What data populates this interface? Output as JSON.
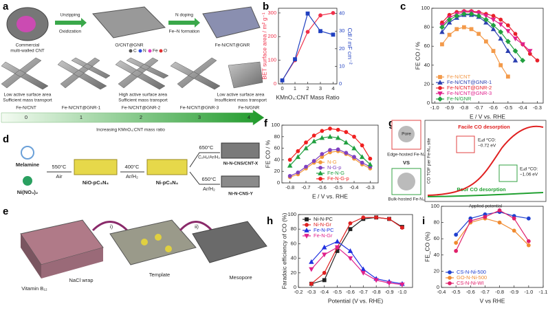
{
  "panel_labels": [
    "a",
    "b",
    "c",
    "d",
    "e",
    "f",
    "g",
    "h",
    "i"
  ],
  "panel_a": {
    "step1": [
      "Unzipping",
      "Oxidization"
    ],
    "step2": [
      "N doping",
      "Fe–N formation"
    ],
    "cnt": [
      "Commercial",
      "multi-walled CNT"
    ],
    "middle": "O/CNT@GNR",
    "right": "Fe-N/CNT@GNR",
    "atoms": [
      "C",
      "N",
      "Fe",
      "O"
    ],
    "captions": [
      [
        "Low active surface area",
        "Sufficient mass transport"
      ],
      [
        "High active surface area",
        "Sufficient mass transport"
      ],
      [
        "Low active surface area",
        "Insufficient mass transport"
      ]
    ],
    "samples": [
      "Fe-N/CNT",
      "Fe-N/CNT@GNR-1",
      "Fe-N/CNT@GNR-2",
      "Fe-N/CNT@GNR-3",
      "Fe-N/GNR"
    ],
    "ratios": [
      0,
      1,
      2,
      3,
      4
    ],
    "arrow": "Increasing KMnO₄:CNT mass ratio"
  },
  "panel_d": {
    "melamine": "Melamine",
    "nickel": "Ni(NO₃)₂",
    "t1": "550°C",
    "g1": "Air",
    "p1": "NiO-pC₃N₄",
    "t2": "400°C",
    "g2": "Ar/H₂",
    "p2": "Ni-pC₃N₄",
    "t3": "650°C",
    "g3": "C₂H₂/Ar/H₂",
    "p3": "Ni-N-CNS/CNT-X",
    "t4": "650°C",
    "g4": "Ar/H₂",
    "p4": "Ni-N-CNS-Y"
  },
  "panel_e": {
    "vitamin": "Vitamin B₁₂",
    "wrap": "NaCl wrap",
    "template": "Template",
    "mesopore": "Mesopore",
    "s1": "i)",
    "s2": "ii)"
  },
  "panel_g": {
    "pore": "Pore",
    "vs": "VS",
    "edge": "Edge-hosted Fe-N₄",
    "bulk": "Bulk-hosted Fe-N₄",
    "facile": "Facile CO desorption",
    "poor": "Poor CO desorption",
    "e1": [
      "Eₐd *CO:",
      "−0.72 eV"
    ],
    "e2": [
      "Eₐd *CO:",
      "−1.06 eV"
    ],
    "ylabel": "CO TOF per Fe-N₄ site",
    "xlabel": "Applied potential"
  },
  "chart_data": [
    {
      "type": "line",
      "x_label": "KMnO₄:CNT Mass Ratio",
      "y_label": "BET surface area / m² g⁻¹",
      "y2_label": "Cdl / mF cm⁻²",
      "x": [
        0,
        1,
        2,
        3,
        4
      ],
      "series": [
        {
          "name": "BET surface area",
          "color": "#f0304a",
          "marker": "circle",
          "values": [
            15,
            100,
            220,
            290,
            300
          ]
        },
        {
          "name": "Cdl",
          "color": "#2040c0",
          "marker": "square",
          "axis": "y2",
          "values": [
            2,
            14,
            40,
            30,
            28
          ]
        }
      ],
      "xlim": [
        -0.3,
        4.3
      ],
      "xticks": [
        0,
        1,
        2,
        3,
        4
      ],
      "ylim": [
        0,
        320
      ],
      "yticks": [
        0,
        100,
        200,
        300
      ],
      "y2lim": [
        0,
        43
      ],
      "y2ticks": [
        0,
        10,
        20,
        30,
        40
      ]
    },
    {
      "type": "line",
      "x_label": "E / V vs. RHE",
      "y_label": "FE CO / %",
      "legend": "lower left",
      "x": [
        -0.95,
        -0.9,
        -0.85,
        -0.8,
        -0.75,
        -0.7,
        -0.65,
        -0.6,
        -0.55,
        -0.5,
        -0.45,
        -0.4,
        -0.35,
        -0.3
      ],
      "series": [
        {
          "name": "Fe-N/CNT",
          "color": "#f39a4a",
          "marker": "square",
          "values": [
            62,
            72,
            78,
            80,
            78,
            73,
            65,
            55,
            40,
            28,
            null,
            null,
            null,
            null
          ]
        },
        {
          "name": "Fe-N/CNT@GNR-1",
          "color": "#2b3fb0",
          "marker": "triangle",
          "values": [
            75,
            85,
            90,
            93,
            93,
            91,
            85,
            78,
            68,
            55,
            45,
            null,
            null,
            null
          ]
        },
        {
          "name": "Fe-N/CNT@GNR-2",
          "color": "#e8202a",
          "marker": "circle",
          "values": [
            85,
            93,
            96,
            97,
            97,
            96,
            94,
            92,
            88,
            82,
            73,
            62,
            52,
            45
          ]
        },
        {
          "name": "Fe-N/CNT@GNR-3",
          "color": "#e0208c",
          "marker": "triangle-down",
          "values": [
            82,
            90,
            94,
            96,
            96,
            95,
            92,
            88,
            83,
            76,
            68,
            62,
            55,
            null
          ]
        },
        {
          "name": "Fe-N/GNR",
          "color": "#22a040",
          "marker": "diamond",
          "values": [
            80,
            88,
            92,
            94,
            94,
            92,
            88,
            82,
            75,
            65,
            55,
            45,
            null,
            null
          ]
        }
      ],
      "xlim": [
        -1.02,
        -0.26
      ],
      "xticks": [
        {
          "value": -1,
          "label": "-1.0"
        },
        -0.9,
        -0.8,
        -0.7,
        -0.6,
        -0.5,
        -0.4,
        -0.3
      ],
      "ylim": [
        0,
        100
      ],
      "yticks": [
        0,
        20,
        40,
        60,
        80,
        100
      ]
    },
    {
      "type": "line",
      "x_label": "E / V vs. RHE",
      "y_label": "FE CO / %",
      "legend": "lower center",
      "x": [
        -0.8,
        -0.75,
        -0.7,
        -0.65,
        -0.6,
        -0.55,
        -0.5,
        -0.45,
        -0.4,
        -0.35,
        -0.3
      ],
      "series": [
        {
          "name": "N-G",
          "color": "#f39a3a",
          "marker": "circle",
          "values": [
            10,
            15,
            25,
            35,
            45,
            53,
            55,
            50,
            42,
            32,
            25
          ]
        },
        {
          "name": "N-G-p",
          "color": "#8040c0",
          "marker": "circle",
          "values": [
            12,
            18,
            28,
            38,
            50,
            57,
            58,
            52,
            45,
            35,
            28
          ]
        },
        {
          "name": "Fe-N-G",
          "color": "#20a040",
          "marker": "triangle",
          "values": [
            30,
            45,
            60,
            72,
            78,
            80,
            78,
            70,
            60,
            45,
            32
          ]
        },
        {
          "name": "Fe-N-G-p",
          "color": "#f02020",
          "marker": "circle",
          "values": [
            40,
            55,
            70,
            82,
            90,
            94,
            92,
            88,
            80,
            65,
            42
          ]
        }
      ],
      "xlim": [
        -0.85,
        -0.25
      ],
      "xticks": [
        -0.8,
        -0.7,
        -0.6,
        -0.5,
        -0.4,
        -0.3
      ],
      "ylim": [
        0,
        100
      ],
      "yticks": [
        0,
        20,
        40,
        60,
        80,
        100
      ]
    },
    {
      "type": "line",
      "x_label": "Potential (V vs. RHE)",
      "y_label": "Faradaic efficiency of CO (%)",
      "legend": "upper left",
      "x": [
        -0.3,
        -0.4,
        -0.5,
        -0.6,
        -0.7,
        -0.8,
        -0.9,
        -1
      ],
      "series": [
        {
          "name": "Ni-N-PC",
          "color": "#222222",
          "marker": "square",
          "values": [
            5,
            10,
            50,
            80,
            94,
            96,
            94,
            83
          ]
        },
        {
          "name": "Ni-N-Gr",
          "color": "#e02020",
          "marker": "circle",
          "values": [
            5,
            20,
            55,
            88,
            96,
            96,
            94,
            82
          ]
        },
        {
          "name": "Fe-N-PC",
          "color": "#2030e0",
          "marker": "triangle",
          "values": [
            35,
            55,
            63,
            50,
            25,
            12,
            8,
            5
          ]
        },
        {
          "name": "Fe-N-Gr",
          "color": "#e0208c",
          "marker": "triangle-down",
          "values": [
            25,
            45,
            55,
            40,
            20,
            10,
            6,
            4
          ]
        }
      ],
      "xlim": [
        -0.2,
        -1.08
      ],
      "xticks": [
        -0.2,
        -0.3,
        -0.4,
        -0.5,
        -0.6,
        -0.7,
        -0.8,
        -0.9,
        {
          "value": -1,
          "label": "-1.0"
        }
      ],
      "ylim": [
        0,
        100
      ],
      "yticks": [
        0,
        20,
        40,
        60,
        80,
        100
      ]
    },
    {
      "type": "line",
      "x_label": "V vs RHE",
      "y_label": "FE_CO (%)",
      "legend": "lower left",
      "x": [
        -0.5,
        -0.6,
        -0.7,
        -0.8,
        -0.9,
        -1
      ],
      "series": [
        {
          "name": "CS-N-Ni-500",
          "color": "#2040d0",
          "marker": "circle",
          "values": [
            65,
            85,
            90,
            93,
            88,
            85
          ]
        },
        {
          "name": "GO-N-Ni-500",
          "color": "#f08a30",
          "marker": "circle",
          "values": [
            55,
            80,
            85,
            80,
            70,
            52
          ]
        },
        {
          "name": "CS-N-Ni-WI",
          "color": "#e0206a",
          "marker": "circle",
          "values": [
            45,
            82,
            87,
            95,
            85,
            57
          ]
        }
      ],
      "xlim": [
        -0.4,
        -1.1
      ],
      "xticks": [
        -0.4,
        -0.5,
        -0.6,
        -0.7,
        -0.8,
        -0.9,
        {
          "value": -1,
          "label": "-1.0"
        },
        -1.1
      ],
      "ylim": [
        0,
        100
      ],
      "yticks": [
        0,
        20,
        40,
        60,
        80,
        100
      ]
    }
  ]
}
